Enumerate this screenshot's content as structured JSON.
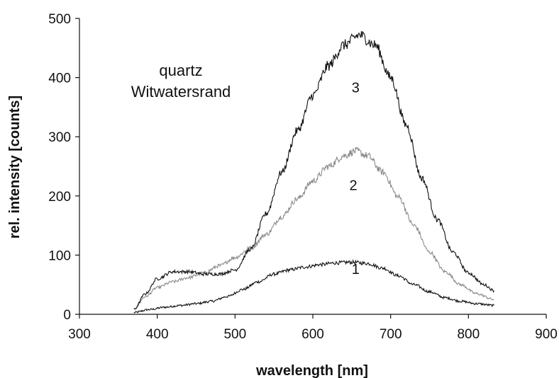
{
  "chart_data": {
    "type": "line",
    "title": "",
    "xlabel": "wavelength [nm]",
    "ylabel": "rel. intensity [counts]",
    "xlim": [
      300,
      900
    ],
    "ylim": [
      0,
      500
    ],
    "x_ticks": [
      300,
      400,
      500,
      600,
      700,
      800,
      900
    ],
    "y_ticks": [
      0,
      100,
      200,
      300,
      400,
      500
    ],
    "annotation_lines": [
      "quartz",
      "Witwatersrand"
    ],
    "grid": false,
    "series": [
      {
        "name": "1",
        "color": "#111111",
        "label_at": [
          655,
          68
        ],
        "points": [
          [
            370,
            3
          ],
          [
            390,
            8
          ],
          [
            410,
            12
          ],
          [
            430,
            15
          ],
          [
            450,
            18
          ],
          [
            470,
            22
          ],
          [
            490,
            30
          ],
          [
            510,
            42
          ],
          [
            530,
            55
          ],
          [
            550,
            68
          ],
          [
            570,
            75
          ],
          [
            590,
            80
          ],
          [
            610,
            84
          ],
          [
            630,
            87
          ],
          [
            650,
            88
          ],
          [
            670,
            86
          ],
          [
            690,
            78
          ],
          [
            710,
            65
          ],
          [
            730,
            50
          ],
          [
            750,
            38
          ],
          [
            770,
            28
          ],
          [
            790,
            22
          ],
          [
            810,
            18
          ],
          [
            833,
            15
          ]
        ]
      },
      {
        "name": "2",
        "color": "#8a8a8a",
        "label_at": [
          652,
          210
        ],
        "points": [
          [
            370,
            10
          ],
          [
            385,
            30
          ],
          [
            400,
            45
          ],
          [
            420,
            55
          ],
          [
            440,
            62
          ],
          [
            460,
            70
          ],
          [
            480,
            82
          ],
          [
            500,
            96
          ],
          [
            520,
            112
          ],
          [
            540,
            135
          ],
          [
            560,
            165
          ],
          [
            580,
            195
          ],
          [
            600,
            225
          ],
          [
            620,
            250
          ],
          [
            640,
            268
          ],
          [
            655,
            276
          ],
          [
            670,
            268
          ],
          [
            690,
            240
          ],
          [
            710,
            198
          ],
          [
            730,
            150
          ],
          [
            750,
            105
          ],
          [
            770,
            72
          ],
          [
            790,
            50
          ],
          [
            810,
            35
          ],
          [
            833,
            25
          ]
        ]
      },
      {
        "name": "3",
        "color": "#111111",
        "label_at": [
          655,
          375
        ],
        "points": [
          [
            370,
            8
          ],
          [
            385,
            35
          ],
          [
            400,
            60
          ],
          [
            420,
            72
          ],
          [
            440,
            72
          ],
          [
            460,
            68
          ],
          [
            480,
            68
          ],
          [
            500,
            75
          ],
          [
            520,
            110
          ],
          [
            540,
            170
          ],
          [
            560,
            240
          ],
          [
            580,
            310
          ],
          [
            600,
            370
          ],
          [
            620,
            420
          ],
          [
            640,
            455
          ],
          [
            660,
            472
          ],
          [
            680,
            455
          ],
          [
            700,
            400
          ],
          [
            720,
            320
          ],
          [
            740,
            230
          ],
          [
            760,
            160
          ],
          [
            780,
            105
          ],
          [
            800,
            70
          ],
          [
            820,
            50
          ],
          [
            833,
            40
          ]
        ]
      }
    ]
  }
}
